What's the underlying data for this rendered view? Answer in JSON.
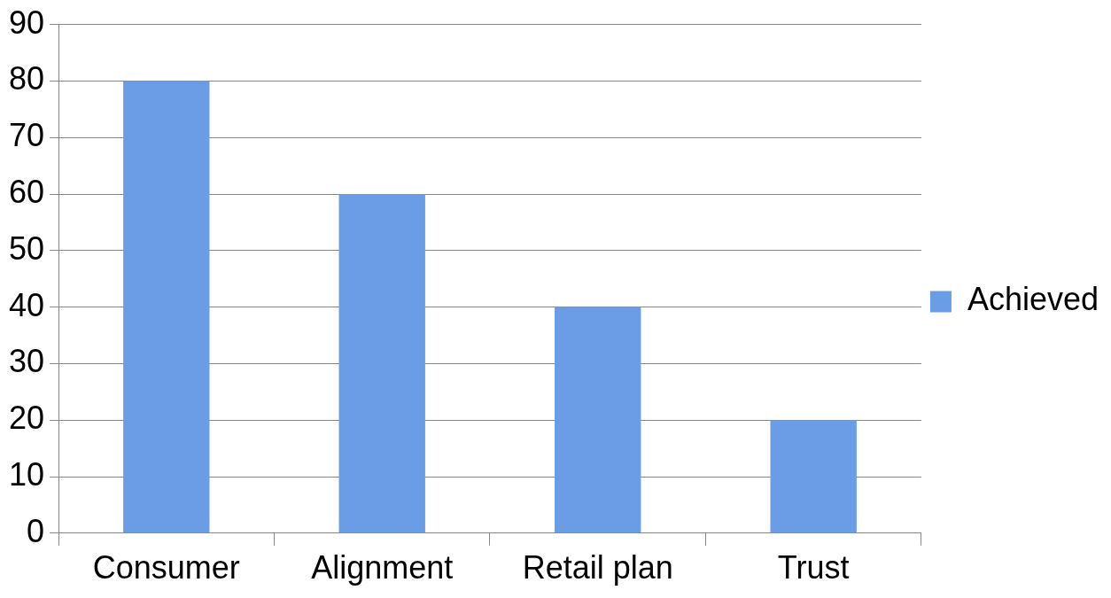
{
  "chart_data": {
    "type": "bar",
    "categories": [
      "Consumer",
      "Alignment",
      "Retail plan",
      "Trust"
    ],
    "series": [
      {
        "name": "Achieved",
        "color": "#6b9de6",
        "values": [
          80,
          60,
          40,
          20
        ]
      }
    ],
    "ylim": [
      0,
      90
    ],
    "yticks": [
      0,
      10,
      20,
      30,
      40,
      50,
      60,
      70,
      80,
      90
    ],
    "grid": "y",
    "legend": "right"
  }
}
